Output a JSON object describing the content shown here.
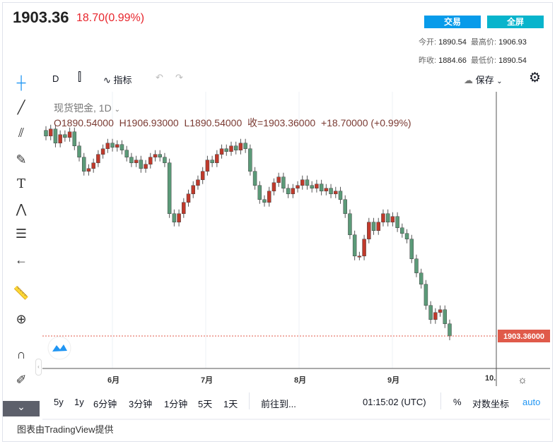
{
  "header": {
    "price": "1903.36",
    "change": "18.70(0.99%)",
    "trade_button": "交易",
    "fullscreen_button": "全屏",
    "open_label": "今开:",
    "open": "1890.54",
    "high_label": "最高价:",
    "high": "1906.93",
    "prev_close_label": "昨收:",
    "prev_close": "1884.66",
    "low_label": "最低价:",
    "low": "1890.54"
  },
  "toolbar": {
    "interval": "D",
    "indicators": "指标",
    "save": "保存"
  },
  "legend": {
    "symbol": "现货钯金, 1D",
    "ohlc": "O1890.54000  H1906.93000  L1890.54000  收=1903.36000  +18.70000 (+0.99%)"
  },
  "price_label": "1903.36000",
  "x_axis": [
    "6月",
    "7月",
    "8月",
    "9月",
    "10."
  ],
  "bottom": {
    "ranges": [
      "5y",
      "1y",
      "6分钟",
      "3分钟",
      "1分钟",
      "5天",
      "1天"
    ],
    "goto": "前往到...",
    "time": "01:15:02 (UTC)",
    "percent": "%",
    "log": "对数坐标",
    "auto": "auto"
  },
  "footer": "图表由TradingView提供",
  "colors": {
    "up": "#c0392b",
    "down": "#5b9a78",
    "trade": "#089bea",
    "fullscreen": "#08b4cc",
    "last": "#e05a4a"
  },
  "chart_data": {
    "type": "candlestick",
    "last": 1903.36,
    "closes": [
      2045,
      2050,
      2040,
      2046,
      2044,
      2048,
      2038,
      2030,
      2020,
      2022,
      2026,
      2032,
      2036,
      2040,
      2037,
      2039,
      2035,
      2030,
      2026,
      2028,
      2022,
      2025,
      2030,
      2032,
      2030,
      2026,
      1990,
      1984,
      1990,
      1998,
      2004,
      2010,
      2014,
      2020,
      2028,
      2026,
      2032,
      2036,
      2034,
      2038,
      2035,
      2040,
      2036,
      2020,
      2010,
      2000,
      1998,
      2006,
      2012,
      2016,
      2008,
      2004,
      2008,
      2010,
      2014,
      2010,
      2008,
      2011,
      2006,
      2008,
      2004,
      2006,
      2000,
      1990,
      1975,
      1960,
      1960,
      1972,
      1984,
      1978,
      1984,
      1990,
      1984,
      1988,
      1980,
      1976,
      1972,
      1958,
      1948,
      1940,
      1925,
      1915,
      1920,
      1922,
      1912,
      1903.36
    ]
  }
}
